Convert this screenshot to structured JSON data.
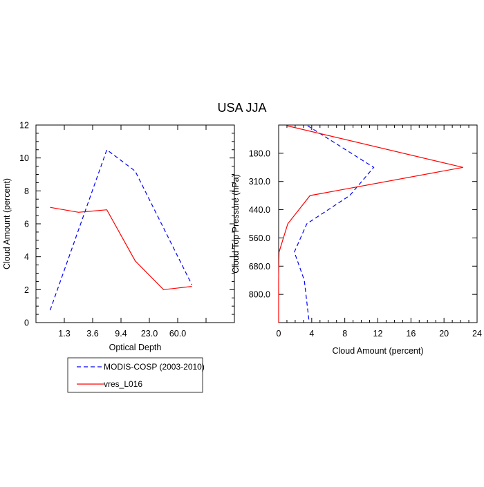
{
  "title": "USA JJA",
  "colors": {
    "series_0": "#0000ff",
    "series_1": "#ff0000",
    "axis": "#000000",
    "background": "#ffffff"
  },
  "chart_data": [
    {
      "type": "line",
      "xlabel": "Optical Depth",
      "ylabel": "Cloud Amount (percent)",
      "x_tick_labels": [
        "1.3",
        "3.6",
        "9.4",
        "23.0",
        "60.0"
      ],
      "y_tick_labels": [
        "0",
        "2",
        "4",
        "6",
        "8",
        "10",
        "12"
      ],
      "ylim": [
        0,
        12
      ],
      "x_bins": 7,
      "grid": false,
      "legend_position": "bottom-left",
      "series": [
        {
          "name": "MODIS-COSP (2003-2010)",
          "style": "dashed",
          "x": [
            0,
            2,
            3,
            5
          ],
          "values": [
            0.75,
            10.5,
            9.2,
            2.3
          ]
        },
        {
          "name": "vres_L016",
          "style": "solid",
          "x": [
            0,
            1,
            2,
            3,
            4,
            5
          ],
          "values": [
            7.0,
            6.7,
            6.85,
            3.75,
            2.0,
            2.2
          ]
        }
      ]
    },
    {
      "type": "line",
      "xlabel": "Cloud Amount (percent)",
      "ylabel": "Cloud Top Pressure (hPa)",
      "x_tick_labels": [
        "0",
        "4",
        "8",
        "12",
        "16",
        "20",
        "24"
      ],
      "y_tick_labels": [
        "180.0",
        "310.0",
        "440.0",
        "560.0",
        "680.0",
        "800.0"
      ],
      "xlim": [
        0,
        24
      ],
      "y_levels": 7,
      "grid": false,
      "series": [
        {
          "name": "MODIS-COSP (2003-2010)",
          "style": "dashed",
          "y": [
            0,
            1,
            2,
            3,
            4,
            5,
            6
          ],
          "values": [
            3.5,
            11.5,
            8.6,
            3.4,
            1.9,
            3.1,
            3.7
          ]
        },
        {
          "name": "vres_L016",
          "style": "solid",
          "y": [
            0,
            1,
            2,
            3,
            4,
            5,
            6
          ],
          "values": [
            1.0,
            22.3,
            3.8,
            1.1,
            0.05,
            0.0,
            0.0
          ]
        }
      ]
    }
  ]
}
